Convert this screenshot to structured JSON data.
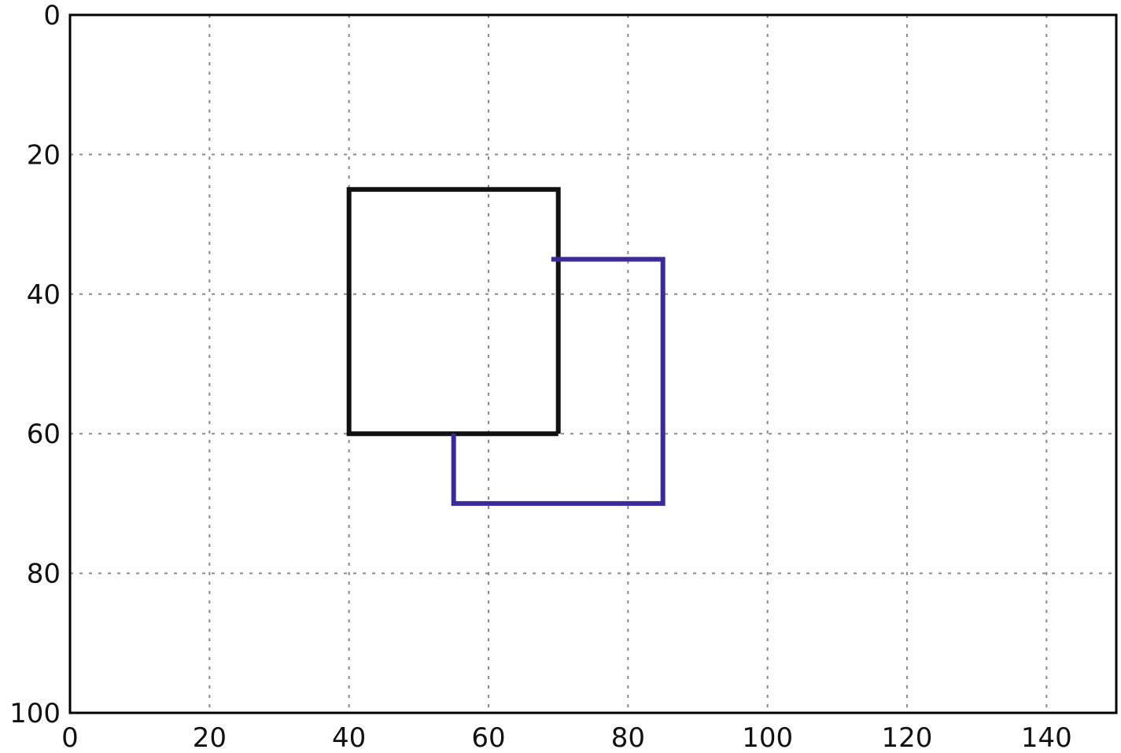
{
  "chart_data": {
    "type": "line",
    "title": "",
    "xlabel": "",
    "ylabel": "",
    "xlim": [
      0,
      150
    ],
    "ylim": [
      0,
      100
    ],
    "y_inverted": true,
    "grid": true,
    "x_ticks": [
      0,
      20,
      40,
      60,
      80,
      100,
      120,
      140
    ],
    "y_ticks": [
      0,
      20,
      40,
      60,
      80,
      100
    ],
    "series": [
      {
        "color": "#111111",
        "x": [
          55,
          40,
          40,
          70,
          70
        ],
        "y": [
          60,
          60,
          25,
          25,
          60
        ],
        "closing_x": [
          70,
          55
        ],
        "closing_y": [
          60,
          60
        ]
      },
      {
        "color": "#3b2b9a",
        "x": [
          69,
          85,
          85,
          55,
          55
        ],
        "y": [
          35,
          35,
          70,
          70,
          60
        ]
      }
    ]
  }
}
